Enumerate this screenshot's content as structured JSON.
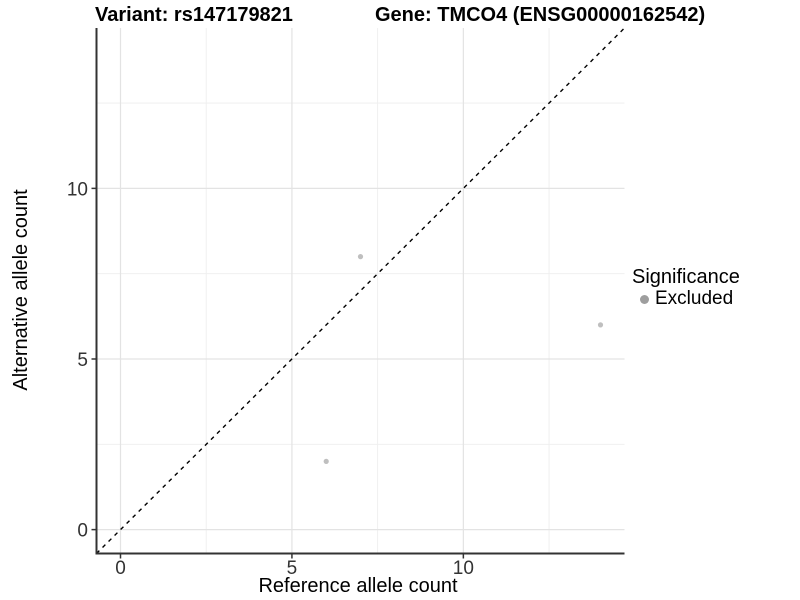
{
  "chart_data": {
    "type": "scatter",
    "titles": {
      "left": "Variant: rs147179821",
      "right": "Gene: TMCO4 (ENSG00000162542)"
    },
    "xlabel": "Reference allele count",
    "ylabel": "Alternative allele count",
    "xlim": [
      -0.7,
      14.7
    ],
    "ylim": [
      -0.7,
      14.7
    ],
    "x_ticks": [
      0,
      5,
      10
    ],
    "y_ticks": [
      0,
      5,
      10
    ],
    "x_minor_ticks": [
      2.5,
      7.5,
      12.5
    ],
    "y_minor_ticks": [
      2.5,
      7.5,
      12.5
    ],
    "grid": "major+minor",
    "reference_line": {
      "type": "identity",
      "slope": 1,
      "intercept": 0,
      "style": "dashed",
      "color": "#000000"
    },
    "series": [
      {
        "name": "Excluded",
        "marker": "circle",
        "color": "#bfbfbf",
        "points": [
          [
            7,
            8
          ],
          [
            14,
            6
          ],
          [
            6,
            2
          ]
        ]
      }
    ],
    "legend": {
      "title": "Significance",
      "position": "right",
      "items": [
        {
          "label": "Excluded",
          "color": "#9e9e9e"
        }
      ]
    }
  },
  "colors": {
    "background": "#ffffff",
    "axis_line": "#333333",
    "grid_major": "#e3e3e3",
    "grid_minor": "#eeeeee",
    "tick_label": "#333333",
    "title_text": "#000000"
  }
}
